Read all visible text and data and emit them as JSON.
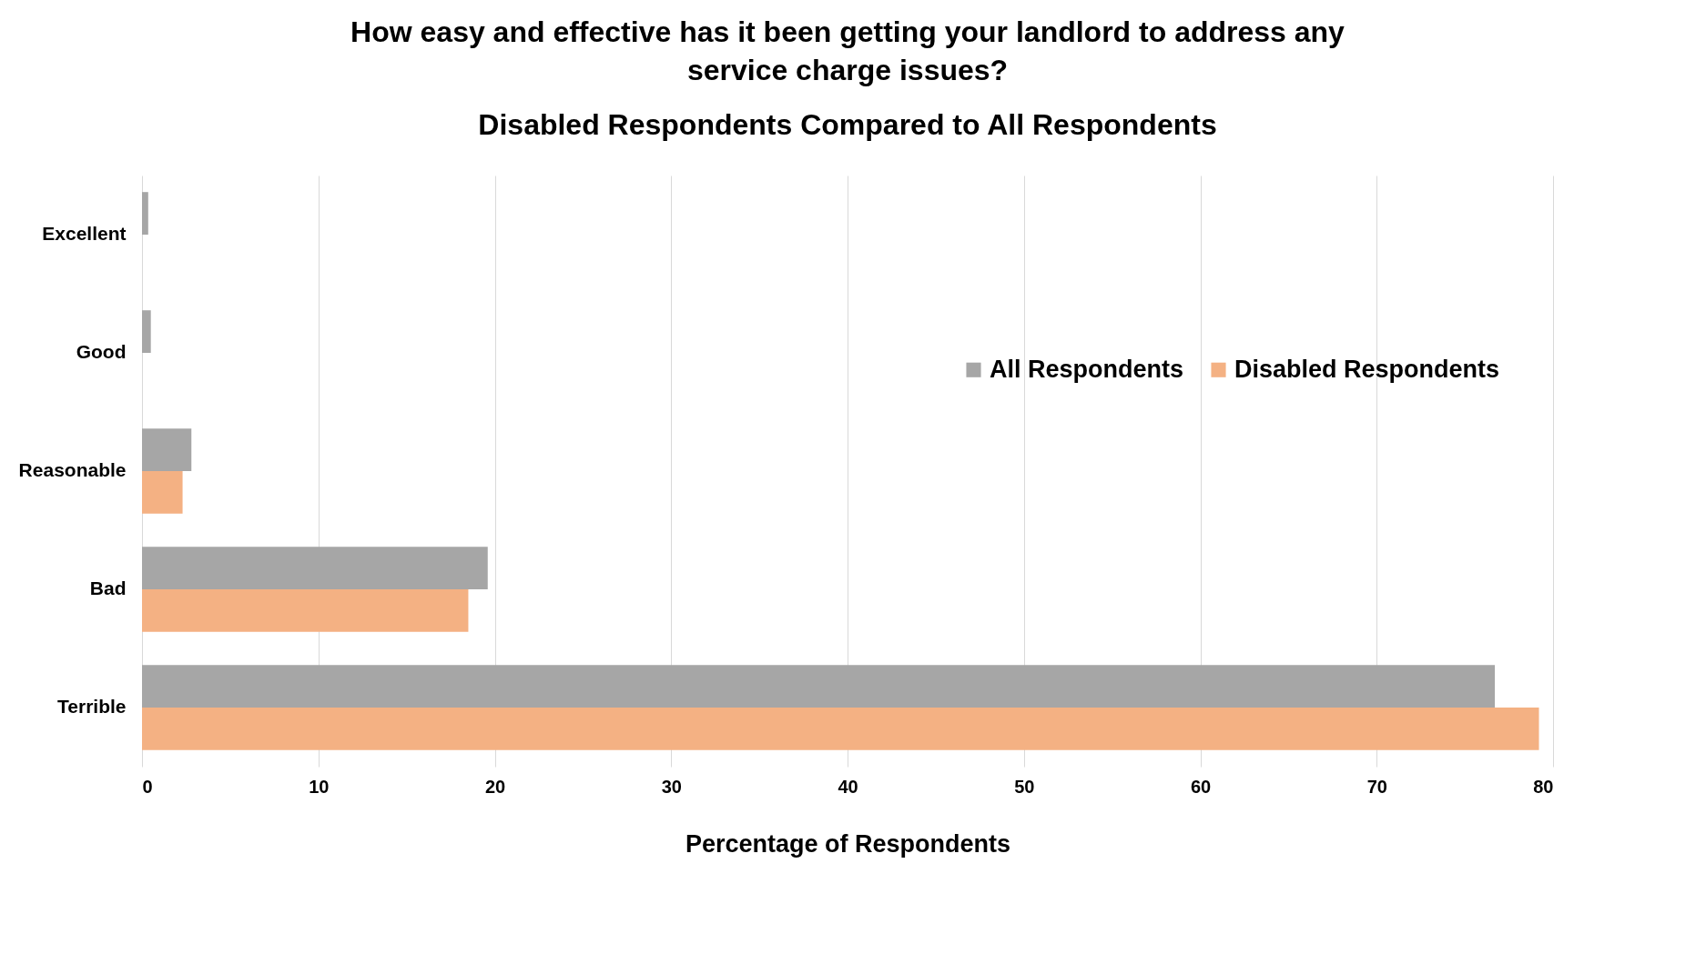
{
  "chart_data": {
    "type": "bar",
    "orientation": "horizontal",
    "title": "How easy and effective has it been getting your landlord to address any service charge issues?",
    "subtitle": "Disabled Respondents Compared to All Respondents",
    "xlabel": "Percentage of Respondents",
    "categories": [
      "Excellent",
      "Good",
      "Reasonable",
      "Bad",
      "Terrible"
    ],
    "series": [
      {
        "name": "All Respondents",
        "color": "#a6a6a6",
        "values": [
          0.35,
          0.5,
          2.8,
          19.6,
          76.7
        ]
      },
      {
        "name": "Disabled Respondents",
        "color": "#f4b183",
        "values": [
          0,
          0,
          2.3,
          18.5,
          79.2
        ]
      }
    ],
    "xlim": [
      0,
      80
    ],
    "xticks": [
      0,
      10,
      20,
      30,
      40,
      50,
      60,
      70,
      80
    ],
    "grid": "x",
    "legend": "top right"
  }
}
